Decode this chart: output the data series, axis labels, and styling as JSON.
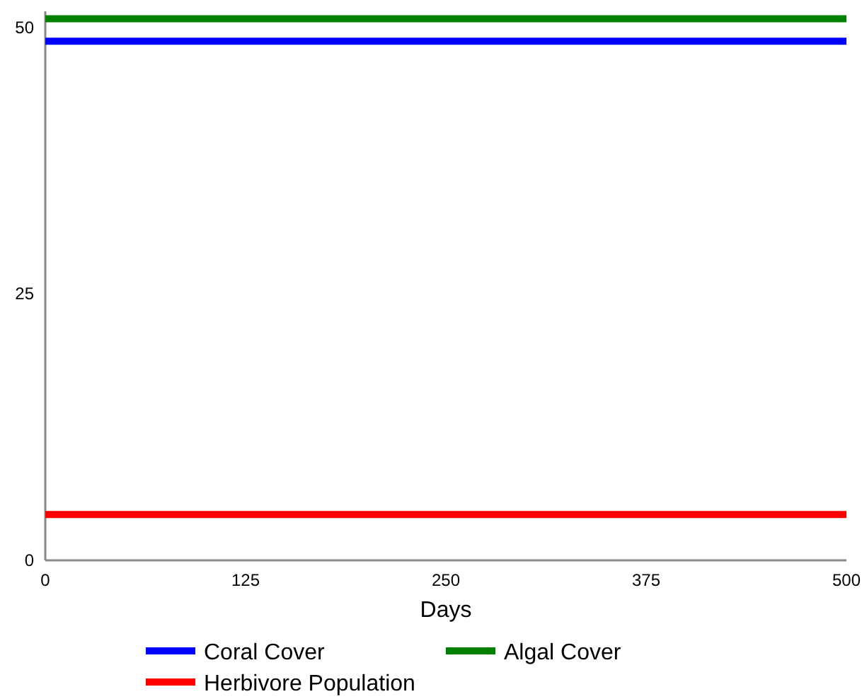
{
  "chart_data": {
    "type": "line",
    "xlabel": "Days",
    "x": [
      0,
      500
    ],
    "series": [
      {
        "name": "Coral Cover",
        "color": "#0000ff",
        "values": [
          48.7,
          48.7
        ]
      },
      {
        "name": "Algal Cover",
        "color": "#008000",
        "values": [
          50.8,
          50.8
        ]
      },
      {
        "name": "Herbivore Population",
        "color": "#ff0000",
        "values": [
          4.3,
          4.3
        ]
      }
    ],
    "xlim": [
      0,
      500
    ],
    "xticks": [
      0,
      125,
      250,
      375,
      500
    ],
    "ylim": [
      0,
      51.5
    ],
    "yticks": [
      0,
      25,
      50
    ],
    "grid": false,
    "legend": "bottom",
    "marker": "none",
    "line_style": "solid"
  }
}
